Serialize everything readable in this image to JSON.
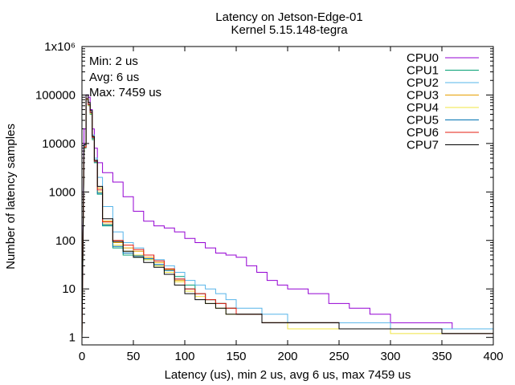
{
  "chart_data": {
    "type": "line",
    "title": "Latency on Jetson-Edge-01",
    "subtitle": "Kernel 5.15.148-tegra",
    "xlabel": "Latency (us), min 2 us, avg 6 us, max 7459 us",
    "ylabel": "Number of latency samples",
    "y_scale": "log",
    "xlim": [
      0,
      400
    ],
    "ylim": [
      0.7,
      1000000
    ],
    "x_ticks": [
      "0",
      "50",
      "100",
      "150",
      "200",
      "250",
      "300",
      "350",
      "400"
    ],
    "y_ticks": [
      {
        "value": 1,
        "label": "1"
      },
      {
        "value": 10,
        "label": "10"
      },
      {
        "value": 100,
        "label": "100"
      },
      {
        "value": 1000,
        "label": "1000"
      },
      {
        "value": 10000,
        "label": "10000"
      },
      {
        "value": 100000,
        "label": "100000"
      },
      {
        "value": 1000000,
        "label": "1x10⁶"
      }
    ],
    "stats": [
      "Min: 2 us",
      "Avg: 6 us",
      "Max: 7459 us"
    ],
    "legend_position": "top-right",
    "series": [
      {
        "name": "CPU0",
        "color": "#9400d3",
        "x": [
          2,
          4,
          6,
          8,
          10,
          12,
          15,
          20,
          30,
          40,
          50,
          60,
          70,
          80,
          90,
          100,
          110,
          120,
          130,
          140,
          150,
          160,
          170,
          180,
          190,
          200,
          220,
          240,
          260,
          280,
          300,
          320,
          340,
          360,
          380,
          400
        ],
        "y": [
          20000,
          100000,
          90000,
          50000,
          20000,
          8000,
          4000,
          2500,
          1600,
          800,
          400,
          250,
          200,
          180,
          150,
          110,
          90,
          70,
          55,
          50,
          45,
          30,
          22,
          15,
          12,
          10,
          8,
          5,
          4,
          3,
          2,
          2,
          2,
          1.5,
          1.5,
          1.5
        ]
      },
      {
        "name": "CPU1",
        "color": "#009e73",
        "x": [
          2,
          4,
          6,
          8,
          10,
          12,
          15,
          20,
          30,
          40,
          50,
          60,
          70,
          80,
          90,
          100,
          110,
          120,
          130,
          140,
          150,
          175,
          200,
          250,
          300,
          350,
          400
        ],
        "y": [
          8000,
          80000,
          60000,
          40000,
          12000,
          4000,
          900,
          200,
          70,
          50,
          45,
          40,
          30,
          25,
          18,
          12,
          8,
          6,
          5,
          4,
          3,
          2,
          2,
          1.5,
          1.5,
          1.2,
          1.2
        ]
      },
      {
        "name": "CPU2",
        "color": "#56b4e9",
        "x": [
          2,
          4,
          6,
          8,
          10,
          12,
          15,
          20,
          30,
          40,
          50,
          60,
          70,
          80,
          90,
          100,
          110,
          120,
          130,
          140,
          150,
          175,
          200,
          250,
          300,
          350,
          400
        ],
        "y": [
          9000,
          85000,
          65000,
          45000,
          15000,
          5000,
          2000,
          500,
          150,
          90,
          70,
          50,
          40,
          30,
          22,
          15,
          12,
          10,
          8,
          6,
          4,
          3,
          2,
          2,
          1.5,
          1.5,
          1.2
        ]
      },
      {
        "name": "CPU3",
        "color": "#e69f00",
        "x": [
          2,
          4,
          6,
          8,
          10,
          12,
          15,
          20,
          30,
          40,
          50,
          60,
          70,
          80,
          90,
          100,
          110,
          120,
          130,
          140,
          150,
          175,
          200,
          250,
          300,
          350,
          400
        ],
        "y": [
          8500,
          82000,
          62000,
          42000,
          13000,
          4200,
          1200,
          250,
          90,
          70,
          60,
          45,
          35,
          25,
          15,
          10,
          8,
          6,
          5,
          4,
          3,
          2,
          2,
          1.5,
          1.5,
          1.2,
          1.2
        ]
      },
      {
        "name": "CPU4",
        "color": "#f0e442",
        "x": [
          2,
          4,
          6,
          8,
          10,
          12,
          15,
          20,
          30,
          40,
          50,
          60,
          70,
          80,
          90,
          100,
          110,
          120,
          130,
          140,
          150,
          175,
          200,
          250,
          300,
          350,
          400
        ],
        "y": [
          8200,
          81000,
          61000,
          41000,
          12500,
          4100,
          1000,
          220,
          80,
          60,
          50,
          40,
          30,
          22,
          14,
          9,
          7,
          5,
          4,
          3,
          3,
          2,
          1.5,
          1.5,
          1.2,
          1.2,
          1.2
        ]
      },
      {
        "name": "CPU5",
        "color": "#0072b2",
        "x": [
          2,
          4,
          6,
          8,
          10,
          12,
          15,
          20,
          30,
          40,
          50,
          60,
          70,
          80,
          90,
          100,
          110,
          120,
          130,
          140,
          150,
          175,
          200,
          250,
          300,
          350,
          400
        ],
        "y": [
          8300,
          83000,
          63000,
          43000,
          12800,
          4150,
          950,
          210,
          75,
          55,
          48,
          42,
          32,
          24,
          16,
          10,
          8,
          6,
          5,
          4,
          3,
          2,
          2,
          1.5,
          1.5,
          1.2,
          1.2
        ]
      },
      {
        "name": "CPU6",
        "color": "#e51e10",
        "x": [
          2,
          4,
          6,
          8,
          10,
          12,
          15,
          20,
          30,
          40,
          50,
          60,
          70,
          80,
          90,
          100,
          110,
          120,
          130,
          140,
          150,
          175,
          200,
          250,
          300,
          350,
          400
        ],
        "y": [
          8400,
          84000,
          64000,
          44000,
          13500,
          4300,
          1100,
          240,
          100,
          80,
          65,
          50,
          38,
          26,
          16,
          10,
          8,
          6,
          5,
          4,
          3,
          2,
          2,
          1.5,
          1.5,
          1.2,
          1.2
        ]
      },
      {
        "name": "CPU7",
        "color": "#000000",
        "x": [
          2,
          4,
          6,
          8,
          10,
          12,
          15,
          20,
          30,
          40,
          50,
          60,
          70,
          80,
          90,
          100,
          110,
          120,
          130,
          140,
          150,
          175,
          200,
          250,
          300,
          350,
          400
        ],
        "y": [
          9500,
          100000,
          70000,
          48000,
          14000,
          4500,
          1300,
          280,
          95,
          60,
          45,
          35,
          28,
          20,
          12,
          8,
          6,
          5,
          4,
          3,
          3,
          2,
          2,
          1.5,
          1.5,
          1.2,
          1.2
        ]
      }
    ]
  }
}
